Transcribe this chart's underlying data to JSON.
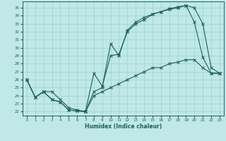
{
  "title": "",
  "xlabel": "Humidex (Indice chaleur)",
  "xlim": [
    -0.5,
    23.5
  ],
  "ylim": [
    21.5,
    35.8
  ],
  "yticks": [
    22,
    23,
    24,
    25,
    26,
    27,
    28,
    29,
    30,
    31,
    32,
    33,
    34,
    35
  ],
  "xticks": [
    0,
    1,
    2,
    3,
    4,
    5,
    6,
    7,
    8,
    9,
    10,
    11,
    12,
    13,
    14,
    15,
    16,
    17,
    18,
    19,
    20,
    21,
    22,
    23
  ],
  "bg_color": "#c0e8e8",
  "grid_color": "#9ecece",
  "line_color": "#1a6060",
  "line1_x": [
    0,
    1,
    2,
    3,
    4,
    5,
    6,
    7,
    8,
    9,
    10,
    11,
    12,
    13,
    14,
    15,
    16,
    17,
    18,
    19,
    20,
    21,
    22,
    23
  ],
  "line1_y": [
    26.0,
    23.8,
    24.5,
    23.5,
    23.2,
    22.2,
    22.1,
    22.0,
    26.8,
    25.2,
    29.0,
    29.2,
    32.0,
    33.0,
    33.5,
    34.2,
    34.5,
    34.8,
    35.0,
    35.3,
    33.2,
    28.8,
    26.8,
    26.8
  ],
  "line2_x": [
    0,
    1,
    2,
    3,
    4,
    5,
    6,
    7,
    8,
    9,
    10,
    11,
    12,
    13,
    14,
    15,
    16,
    17,
    18,
    19,
    20,
    21,
    22,
    23
  ],
  "line2_y": [
    26.0,
    23.8,
    24.5,
    23.5,
    23.2,
    22.2,
    22.1,
    22.0,
    24.5,
    25.0,
    30.5,
    29.0,
    32.2,
    33.2,
    33.8,
    34.2,
    34.5,
    34.9,
    35.1,
    35.3,
    35.0,
    33.0,
    27.5,
    26.8
  ],
  "line3_x": [
    0,
    1,
    2,
    3,
    4,
    5,
    6,
    7,
    8,
    9,
    10,
    11,
    12,
    13,
    14,
    15,
    16,
    17,
    18,
    19,
    20,
    21,
    22,
    23
  ],
  "line3_y": [
    26.0,
    23.8,
    24.5,
    24.5,
    23.5,
    22.5,
    22.2,
    22.0,
    24.0,
    24.5,
    25.0,
    25.5,
    26.0,
    26.5,
    27.0,
    27.5,
    27.5,
    28.0,
    28.2,
    28.5,
    28.5,
    27.5,
    26.8,
    26.8
  ]
}
